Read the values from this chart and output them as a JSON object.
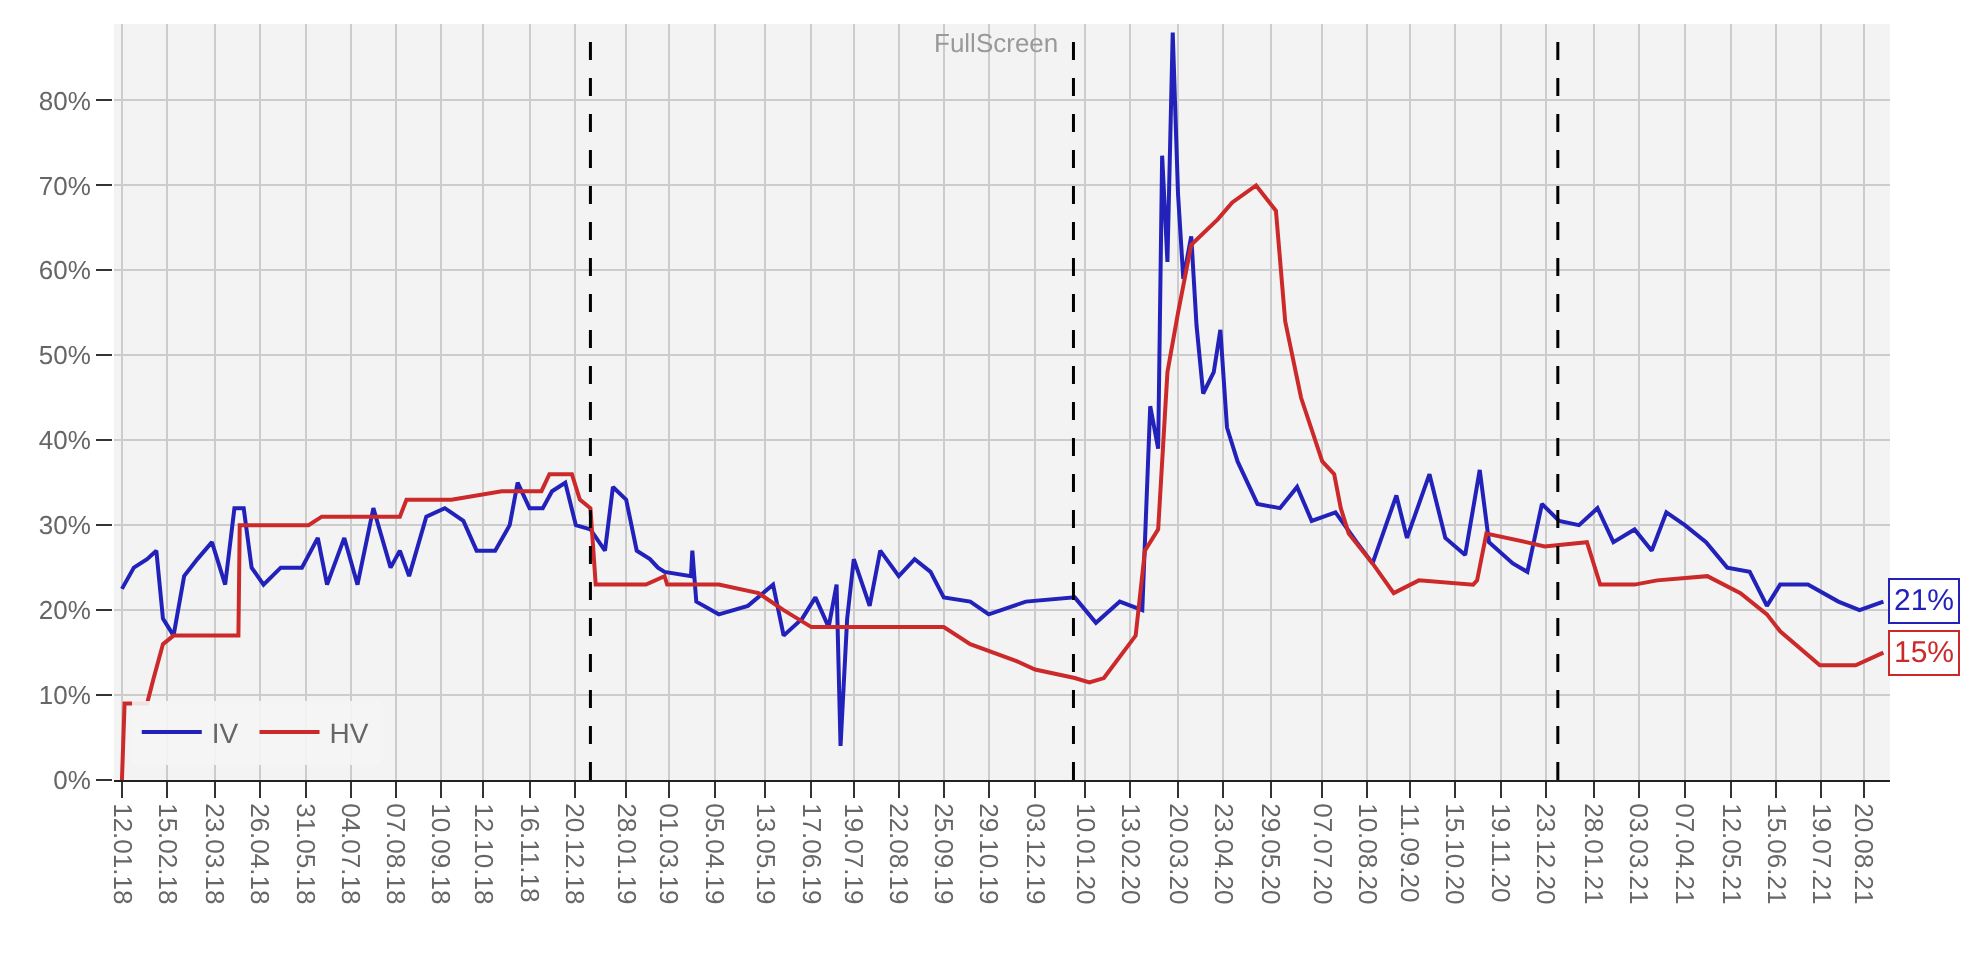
{
  "chart_data": {
    "type": "line",
    "annotations": [
      "FullScreen",
      {
        "text": "21%",
        "x": "2021-09-04",
        "y": 21
      },
      {
        "text": "15%",
        "x": "2021-09-04",
        "y": 15
      }
    ],
    "xlim": [
      "2018-01-06",
      "2021-09-09"
    ],
    "xticks": [
      {
        "value": "2018-01-12",
        "label": "12.01.18"
      },
      {
        "value": "2018-02-15",
        "label": "15.02.18"
      },
      {
        "value": "2018-03-23",
        "label": "23.03.18"
      },
      {
        "value": "2018-04-26",
        "label": "26.04.18"
      },
      {
        "value": "2018-05-31",
        "label": "31.05.18"
      },
      {
        "value": "2018-07-04",
        "label": "04.07.18"
      },
      {
        "value": "2018-08-07",
        "label": "07.08.18"
      },
      {
        "value": "2018-09-10",
        "label": "10.09.18"
      },
      {
        "value": "2018-10-12",
        "label": "12.10.18"
      },
      {
        "value": "2018-11-16",
        "label": "16.11.18"
      },
      {
        "value": "2018-12-20",
        "label": "20.12.18"
      },
      {
        "value": "2019-01-28",
        "label": "28.01.19"
      },
      {
        "value": "2019-03-01",
        "label": "01.03.19"
      },
      {
        "value": "2019-04-05",
        "label": "05.04.19"
      },
      {
        "value": "2019-05-13",
        "label": "13.05.19"
      },
      {
        "value": "2019-06-17",
        "label": "17.06.19"
      },
      {
        "value": "2019-07-19",
        "label": "19.07.19"
      },
      {
        "value": "2019-08-22",
        "label": "22.08.19"
      },
      {
        "value": "2019-09-25",
        "label": "25.09.19"
      },
      {
        "value": "2019-10-29",
        "label": "29.10.19"
      },
      {
        "value": "2019-12-03",
        "label": "03.12.19"
      },
      {
        "value": "2020-01-10",
        "label": "10.01.20"
      },
      {
        "value": "2020-02-13",
        "label": "13.02.20"
      },
      {
        "value": "2020-03-20",
        "label": "20.03.20"
      },
      {
        "value": "2020-04-23",
        "label": "23.04.20"
      },
      {
        "value": "2020-05-29",
        "label": "29.05.20"
      },
      {
        "value": "2020-07-07",
        "label": "07.07.20"
      },
      {
        "value": "2020-08-10",
        "label": "10.08.20"
      },
      {
        "value": "2020-09-11",
        "label": "11.09.20"
      },
      {
        "value": "2020-10-15",
        "label": "15.10.20"
      },
      {
        "value": "2020-11-19",
        "label": "19.11.20"
      },
      {
        "value": "2020-12-23",
        "label": "23.12.20"
      },
      {
        "value": "2021-01-28",
        "label": "28.01.21"
      },
      {
        "value": "2021-03-03",
        "label": "03.03.21"
      },
      {
        "value": "2021-04-07",
        "label": "07.04.21"
      },
      {
        "value": "2021-05-12",
        "label": "12.05.21"
      },
      {
        "value": "2021-06-15",
        "label": "15.06.21"
      },
      {
        "value": "2021-07-19",
        "label": "19.07.21"
      },
      {
        "value": "2021-08-20",
        "label": "20.08.21"
      }
    ],
    "ylim": [
      0,
      89
    ],
    "yticks": [
      {
        "value": 0,
        "label": "0%"
      },
      {
        "value": 10,
        "label": "10%"
      },
      {
        "value": 20,
        "label": "20%"
      },
      {
        "value": 30,
        "label": "30%"
      },
      {
        "value": 40,
        "label": "40%"
      },
      {
        "value": 50,
        "label": "50%"
      },
      {
        "value": 60,
        "label": "60%"
      },
      {
        "value": 70,
        "label": "70%"
      },
      {
        "value": 80,
        "label": "80%"
      }
    ],
    "grid": true,
    "legend": "bottom left",
    "marker": "none",
    "line_style": "solid",
    "ref_lines": [
      {
        "axis": "x",
        "value": "2019-01-01",
        "color": "#000000",
        "line_style": "dashed"
      },
      {
        "axis": "x",
        "value": "2020-01-01",
        "color": "#000000",
        "line_style": "dashed"
      },
      {
        "axis": "x",
        "value": "2021-01-01",
        "color": "#000000",
        "line_style": "dashed"
      }
    ],
    "series": [
      {
        "name": "IV",
        "color": "#2222bb",
        "x": [
          "2018-01-12",
          "2018-01-21",
          "2018-01-31",
          "2018-02-07",
          "2018-02-12",
          "2018-02-20",
          "2018-02-28",
          "2018-03-10",
          "2018-03-21",
          "2018-03-31",
          "2018-04-07",
          "2018-04-14",
          "2018-04-20",
          "2018-04-29",
          "2018-05-12",
          "2018-05-28",
          "2018-06-09",
          "2018-06-16",
          "2018-06-29",
          "2018-07-09",
          "2018-07-21",
          "2018-08-03",
          "2018-08-10",
          "2018-08-17",
          "2018-08-30",
          "2018-09-13",
          "2018-09-27",
          "2018-10-07",
          "2018-10-21",
          "2018-11-01",
          "2018-11-07",
          "2018-11-16",
          "2018-11-26",
          "2018-12-03",
          "2018-12-13",
          "2018-12-21",
          "2019-01-01",
          "2019-01-12",
          "2019-01-18",
          "2019-01-28",
          "2019-02-05",
          "2019-02-15",
          "2019-02-21",
          "2019-02-26",
          "2019-03-18",
          "2019-03-19",
          "2019-03-22",
          "2019-04-08",
          "2019-04-30",
          "2019-05-19",
          "2019-05-27",
          "2019-06-10",
          "2019-06-20",
          "2019-06-30",
          "2019-07-06",
          "2019-07-09",
          "2019-07-14",
          "2019-07-19",
          "2019-07-31",
          "2019-08-08",
          "2019-08-22",
          "2019-09-03",
          "2019-09-15",
          "2019-09-25",
          "2019-10-15",
          "2019-10-29",
          "2019-11-26",
          "2020-01-02",
          "2020-01-18",
          "2020-02-05",
          "2020-02-22",
          "2020-02-28",
          "2020-03-05",
          "2020-03-08",
          "2020-03-12",
          "2020-03-16",
          "2020-03-20",
          "2020-03-24",
          "2020-03-30",
          "2020-04-03",
          "2020-04-08",
          "2020-04-16",
          "2020-04-21",
          "2020-04-26",
          "2020-05-04",
          "2020-05-19",
          "2020-06-05",
          "2020-06-18",
          "2020-06-29",
          "2020-07-17",
          "2020-08-02",
          "2020-08-14",
          "2020-09-01",
          "2020-09-09",
          "2020-09-26",
          "2020-10-08",
          "2020-10-23",
          "2020-11-03",
          "2020-11-10",
          "2020-11-28",
          "2020-12-09",
          "2020-12-20",
          "2021-01-02",
          "2021-01-17",
          "2021-01-31",
          "2021-02-12",
          "2021-02-28",
          "2021-03-13",
          "2021-03-24",
          "2021-04-07",
          "2021-04-23",
          "2021-05-09",
          "2021-05-26",
          "2021-06-08",
          "2021-06-18",
          "2021-07-09",
          "2021-08-01",
          "2021-08-17",
          "2021-09-04"
        ],
        "values": [
          22.5,
          25,
          26,
          27,
          19,
          17,
          24,
          26,
          28,
          23,
          32,
          32,
          25,
          23,
          25,
          25,
          28.5,
          23,
          28.5,
          23,
          32,
          25,
          27,
          24,
          31,
          32,
          30.5,
          27,
          27,
          30,
          35,
          32,
          32,
          34,
          35,
          30,
          29.5,
          27,
          34.5,
          33,
          27,
          26,
          25,
          24.5,
          24,
          27,
          21,
          19.5,
          20.5,
          23,
          17,
          19,
          21.5,
          18,
          23,
          4,
          19,
          26,
          20.5,
          27,
          24,
          26,
          24.5,
          21.5,
          21,
          19.5,
          21,
          21.5,
          18.5,
          21,
          20,
          44,
          39,
          73.5,
          61,
          88,
          69,
          59,
          64,
          53.5,
          45.5,
          48,
          53,
          41.5,
          37.5,
          32.5,
          32,
          34.5,
          30.5,
          31.5,
          28,
          25.5,
          33.5,
          28.5,
          36,
          28.5,
          26.5,
          36.5,
          28,
          25.5,
          24.5,
          32.5,
          30.5,
          30,
          32,
          28,
          29.5,
          27,
          31.5,
          30,
          28,
          25,
          24.5,
          20.5,
          23,
          23,
          21,
          20,
          21
        ]
      },
      {
        "name": "HV",
        "color": "#cc2a2a",
        "x": [
          "2018-01-12",
          "2018-01-14",
          "2018-01-31",
          "2018-02-05",
          "2018-02-12",
          "2018-02-20",
          "2018-04-10",
          "2018-04-11",
          "2018-06-02",
          "2018-06-12",
          "2018-08-10",
          "2018-08-15",
          "2018-09-18",
          "2018-10-26",
          "2018-11-25",
          "2018-12-01",
          "2018-12-18",
          "2018-12-24",
          "2019-01-01",
          "2019-01-05",
          "2019-02-12",
          "2019-02-26",
          "2019-02-28",
          "2019-04-08",
          "2019-05-08",
          "2019-05-27",
          "2019-06-17",
          "2019-09-25",
          "2019-10-15",
          "2019-11-19",
          "2019-12-03",
          "2020-01-02",
          "2020-01-13",
          "2020-01-24",
          "2020-02-17",
          "2020-02-24",
          "2020-03-05",
          "2020-03-12",
          "2020-03-20",
          "2020-03-30",
          "2020-04-19",
          "2020-04-30",
          "2020-05-18",
          "2020-06-02",
          "2020-06-09",
          "2020-06-21",
          "2020-07-07",
          "2020-07-16",
          "2020-07-21",
          "2020-07-27",
          "2020-08-14",
          "2020-08-30",
          "2020-09-18",
          "2020-10-29",
          "2020-11-01",
          "2020-11-08",
          "2020-12-08",
          "2020-12-22",
          "2021-01-23",
          "2021-02-02",
          "2021-02-28",
          "2021-03-17",
          "2021-04-24",
          "2021-05-19",
          "2021-06-08",
          "2021-06-18",
          "2021-07-18",
          "2021-08-14",
          "2021-09-04"
        ],
        "values": [
          0,
          9,
          9,
          12,
          16,
          17,
          17,
          30,
          30,
          31,
          31,
          33,
          33,
          34,
          34,
          36,
          36,
          33,
          32,
          23,
          23,
          24,
          23,
          23,
          22,
          20,
          18,
          18,
          16,
          14,
          13,
          12,
          11.5,
          12,
          17,
          27,
          29.5,
          48,
          55,
          63,
          66,
          68,
          70,
          67,
          54,
          45,
          37.5,
          36,
          32,
          29,
          25.5,
          22,
          23.5,
          23,
          23.5,
          29,
          28,
          27.5,
          28,
          23,
          23,
          23.5,
          24,
          22,
          19.5,
          17.5,
          13.5,
          13.5,
          15
        ]
      }
    ]
  }
}
